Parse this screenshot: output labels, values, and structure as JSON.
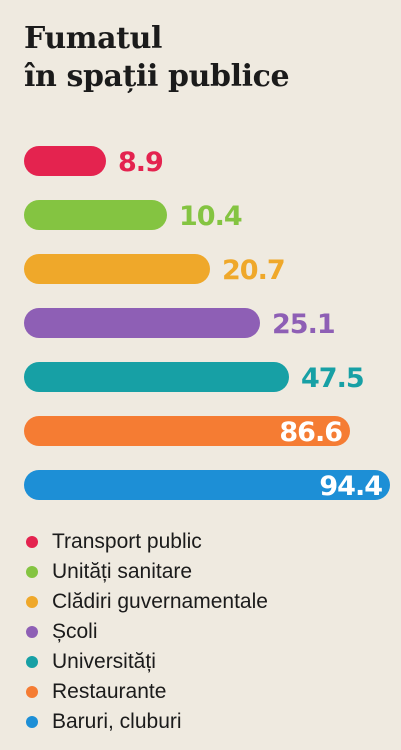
{
  "chart_data": {
    "type": "bar",
    "title_line1": "Fumatul",
    "title_line2": "în spații publice",
    "categories": [
      "Transport public",
      "Unități sanitare",
      "Clădiri guvernamentale",
      "Școli",
      "Universități",
      "Restaurante",
      "Baruri, cluburi"
    ],
    "values": [
      8.9,
      10.4,
      20.7,
      25.1,
      47.5,
      86.6,
      94.4
    ],
    "value_labels": [
      "8.9",
      "10.4",
      "20.7",
      "25.1",
      "47.5",
      "86.6",
      "94.4"
    ],
    "colors": [
      "#e4234f",
      "#84c441",
      "#efa82a",
      "#8e5fb5",
      "#17a0a5",
      "#f57c33",
      "#1d8fd6"
    ],
    "label_inside": [
      false,
      false,
      false,
      false,
      false,
      true,
      true
    ]
  }
}
